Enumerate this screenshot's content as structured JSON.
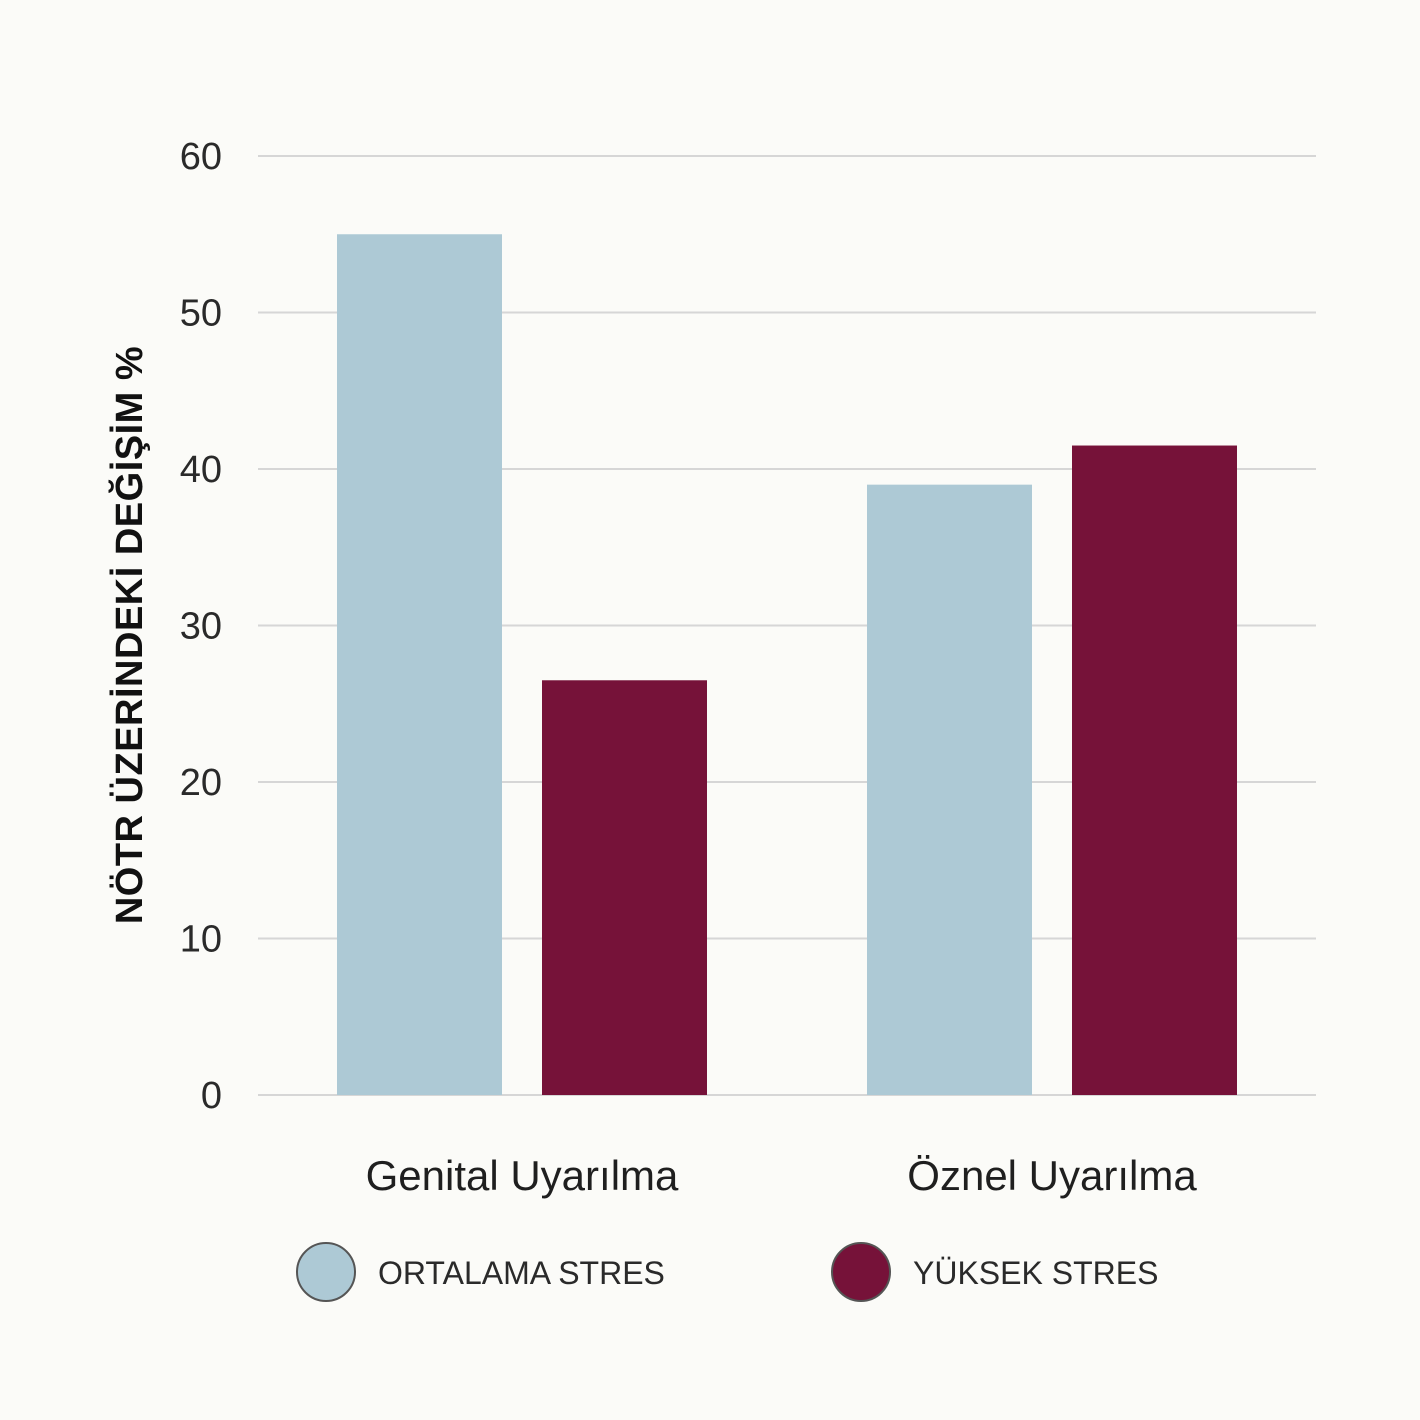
{
  "chart_data": {
    "type": "bar",
    "title": "",
    "xlabel": "",
    "ylabel": "NÖTR ÜZERİNDEKİ DEĞİŞİM %",
    "ylim": [
      0,
      60
    ],
    "yticks": [
      0,
      10,
      20,
      30,
      40,
      50,
      60
    ],
    "grid": true,
    "legend_position": "bottom",
    "categories": [
      "Genital Uyarılma",
      "Öznel Uyarılma"
    ],
    "series": [
      {
        "name": "ORTALAMA STRES",
        "color": "#adc9d5",
        "values": [
          55,
          39
        ]
      },
      {
        "name": "YÜKSEK STRES",
        "color": "#761239",
        "values": [
          26.5,
          41.5
        ]
      }
    ]
  }
}
